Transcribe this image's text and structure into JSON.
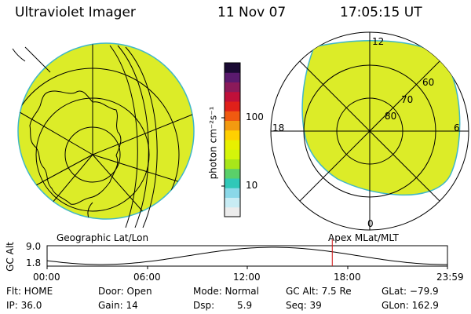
{
  "header": {
    "instrument": "Ultraviolet Imager",
    "date": "11 Nov 07",
    "time": "17:05:15 UT"
  },
  "colorbar": {
    "unit_label": "photon cm⁻²s⁻¹",
    "tick_labels": [
      "100",
      "10"
    ],
    "colors_top_to_bottom": [
      "#1a0a33",
      "#5a1a6e",
      "#8b1a5a",
      "#c0103a",
      "#e0201a",
      "#f05a10",
      "#f39a10",
      "#ffd000",
      "#e8f000",
      "#d4f50a",
      "#a8e61a",
      "#5ad06a",
      "#30c8b8",
      "#8ad8e8",
      "#c8ecf4",
      "#ececec"
    ]
  },
  "left_panel": {
    "label": "Geographic Lat/Lon",
    "fill_color": "#dcec28"
  },
  "right_panel": {
    "label": "Apex MLat/MLT",
    "fill_color": "#dcec28",
    "ring_labels": [
      "60",
      "70",
      "80"
    ],
    "mlt_labels": [
      "12",
      "18",
      "6",
      "0"
    ]
  },
  "altitude_plot": {
    "ylabel": "GC Alt",
    "y_top": "9.0",
    "y_bottom": "1.8",
    "x_labels": [
      "00:00",
      "06:00",
      "12:00",
      "18:00",
      "23:59"
    ],
    "marker_time": "17:05",
    "marker_color": "#d01010"
  },
  "info": {
    "flt": "Flt: HOME",
    "ip": "IP: 36.0",
    "door": "Door: Open",
    "gain": "Gain: 14",
    "mode": "Mode: Normal",
    "dsp_label": "Dsp:",
    "dsp_value": "5.9",
    "gc_alt": "GC Alt: 7.5 Re",
    "seq": "Seq: 39",
    "glat": "GLat: −79.9",
    "glon": "GLon: 162.9"
  }
}
